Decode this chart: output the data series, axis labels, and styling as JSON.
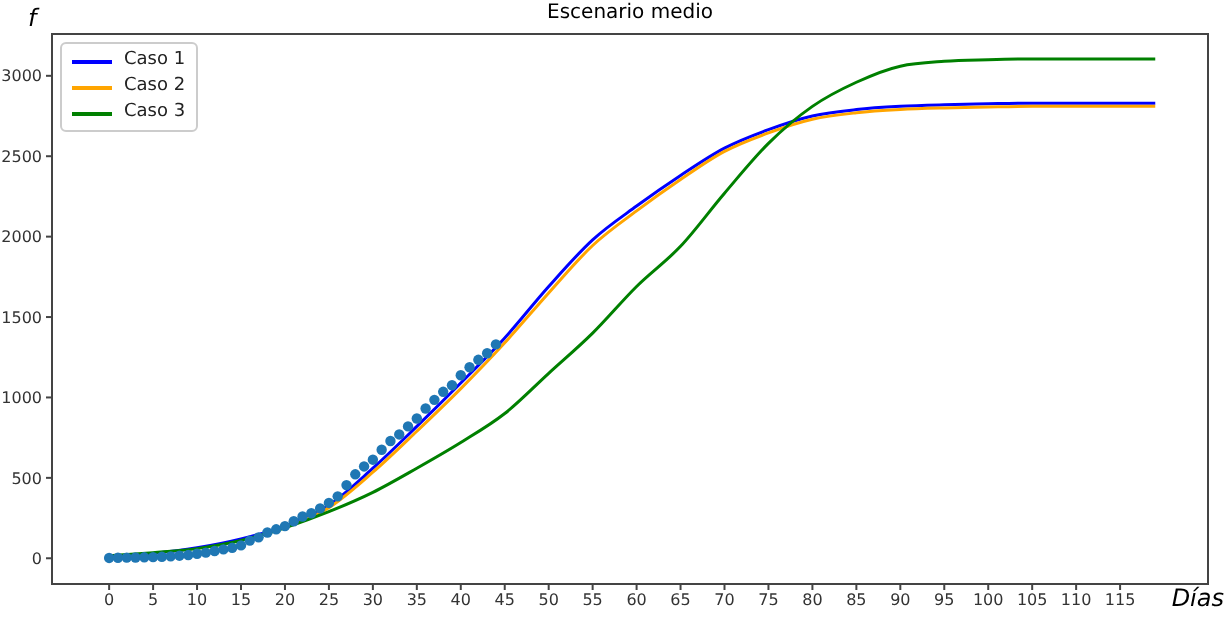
{
  "chart_data": {
    "type": "line",
    "title": "Escenario medio",
    "xlabel": "Días",
    "ylabel": "f",
    "xlim": [
      -6.5,
      125
    ],
    "ylim": [
      -160,
      3260
    ],
    "xticks": [
      0,
      5,
      10,
      15,
      20,
      25,
      30,
      35,
      40,
      45,
      50,
      55,
      60,
      65,
      70,
      75,
      80,
      85,
      90,
      95,
      100,
      105,
      110,
      115
    ],
    "yticks": [
      0,
      500,
      1000,
      1500,
      2000,
      2500,
      3000
    ],
    "legend": "top left",
    "marker": "none",
    "line_style": "solid",
    "series": [
      {
        "name": "Caso 1",
        "color": "#0000ff",
        "x": [
          0,
          5,
          10,
          15,
          20,
          25,
          30,
          35,
          40,
          45,
          50,
          55,
          60,
          65,
          70,
          75,
          80,
          85,
          90,
          95,
          100,
          105,
          110,
          115,
          119
        ],
        "values": [
          10,
          30,
          65,
          120,
          200,
          330,
          560,
          820,
          1090,
          1370,
          1690,
          1980,
          2190,
          2380,
          2550,
          2665,
          2750,
          2790,
          2810,
          2820,
          2826,
          2830,
          2830,
          2830,
          2830
        ]
      },
      {
        "name": "Caso 2",
        "color": "#ffa500",
        "x": [
          20,
          25,
          30,
          35,
          40,
          45,
          50,
          55,
          60,
          65,
          70,
          75,
          80,
          85,
          90,
          95,
          100,
          105,
          110,
          115,
          119
        ],
        "values": [
          190,
          315,
          535,
          790,
          1055,
          1340,
          1650,
          1945,
          2160,
          2355,
          2530,
          2645,
          2730,
          2770,
          2790,
          2800,
          2806,
          2810,
          2810,
          2810,
          2810
        ]
      },
      {
        "name": "Caso 3",
        "color": "#008000",
        "x": [
          0,
          5,
          10,
          15,
          20,
          25,
          30,
          35,
          40,
          45,
          50,
          55,
          60,
          65,
          70,
          75,
          80,
          85,
          90,
          95,
          100,
          105,
          110,
          115,
          119
        ],
        "values": [
          15,
          35,
          60,
          110,
          190,
          290,
          410,
          560,
          720,
          900,
          1150,
          1400,
          1690,
          1940,
          2270,
          2580,
          2810,
          2960,
          3060,
          3090,
          3100,
          3105,
          3105,
          3105,
          3105
        ]
      },
      {
        "type": "scatter",
        "color": "#1f77b4",
        "marker": "circle",
        "x": [
          0,
          1,
          2,
          3,
          4,
          5,
          6,
          7,
          8,
          9,
          10,
          11,
          12,
          13,
          14,
          15,
          16,
          17,
          18,
          19,
          20,
          21,
          22,
          23,
          24,
          25,
          26,
          27,
          28,
          29,
          30,
          31,
          32,
          33,
          34,
          35,
          36,
          37,
          38,
          39,
          40,
          41,
          42,
          43,
          44
        ],
        "values": [
          2,
          3,
          4,
          5,
          6,
          7,
          9,
          12,
          16,
          20,
          28,
          35,
          45,
          55,
          65,
          80,
          110,
          130,
          160,
          180,
          200,
          230,
          260,
          280,
          310,
          344,
          385,
          455,
          522,
          571,
          613,
          675,
          729,
          770,
          820,
          869,
          931,
          985,
          1035,
          1076,
          1138,
          1188,
          1234,
          1275,
          1330
        ]
      }
    ]
  }
}
